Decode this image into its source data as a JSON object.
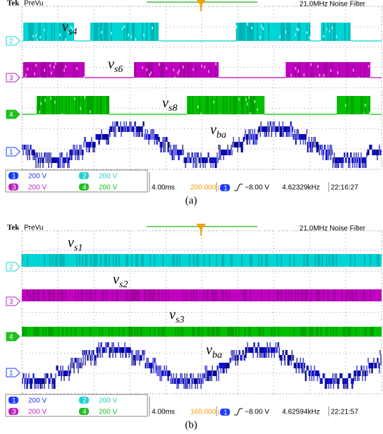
{
  "panels": [
    {
      "header": {
        "brand": "Tek",
        "mode": "PreVu",
        "filter": "21.0MHz  Noise Filter"
      },
      "traces": [
        {
          "marker": "2",
          "symbol": "v",
          "subscript": "s4"
        },
        {
          "marker": "3",
          "symbol": "v",
          "subscript": "s6"
        },
        {
          "marker": "4",
          "symbol": "v",
          "subscript": "s8"
        },
        {
          "marker": "1",
          "symbol": "v",
          "subscript": "ba"
        }
      ],
      "status": {
        "channels": [
          {
            "num": "1",
            "scale": "200 V"
          },
          {
            "num": "2",
            "scale": "200 V"
          },
          {
            "num": "3",
            "scale": "200 V"
          },
          {
            "num": "4",
            "scale": "200 V"
          }
        ],
        "timebase": "4.00ms",
        "position": "200.000 µs",
        "trigger_channel": "1",
        "trigger_level": "−8.00 V",
        "frequency": "4.62329kHz",
        "time": "22:16:27"
      },
      "caption": "(a)"
    },
    {
      "header": {
        "brand": "Tek",
        "mode": "PreVu",
        "filter": "21.0MHz  Noise Filter"
      },
      "traces": [
        {
          "marker": "2",
          "symbol": "v",
          "subscript": "s1"
        },
        {
          "marker": "3",
          "symbol": "v",
          "subscript": "s2"
        },
        {
          "marker": "4",
          "symbol": "v",
          "subscript": "s3"
        },
        {
          "marker": "1",
          "symbol": "v",
          "subscript": "ba"
        }
      ],
      "status": {
        "channels": [
          {
            "num": "1",
            "scale": "200 V"
          },
          {
            "num": "2",
            "scale": "200 V"
          },
          {
            "num": "3",
            "scale": "200 V"
          },
          {
            "num": "4",
            "scale": "200 V"
          }
        ],
        "timebase": "4.00ms",
        "position": "160.000 µs",
        "trigger_channel": "1",
        "trigger_level": "−8.00 V",
        "frequency": "4.62594kHz",
        "time": "22:21:57"
      },
      "caption": "(b)"
    }
  ]
}
